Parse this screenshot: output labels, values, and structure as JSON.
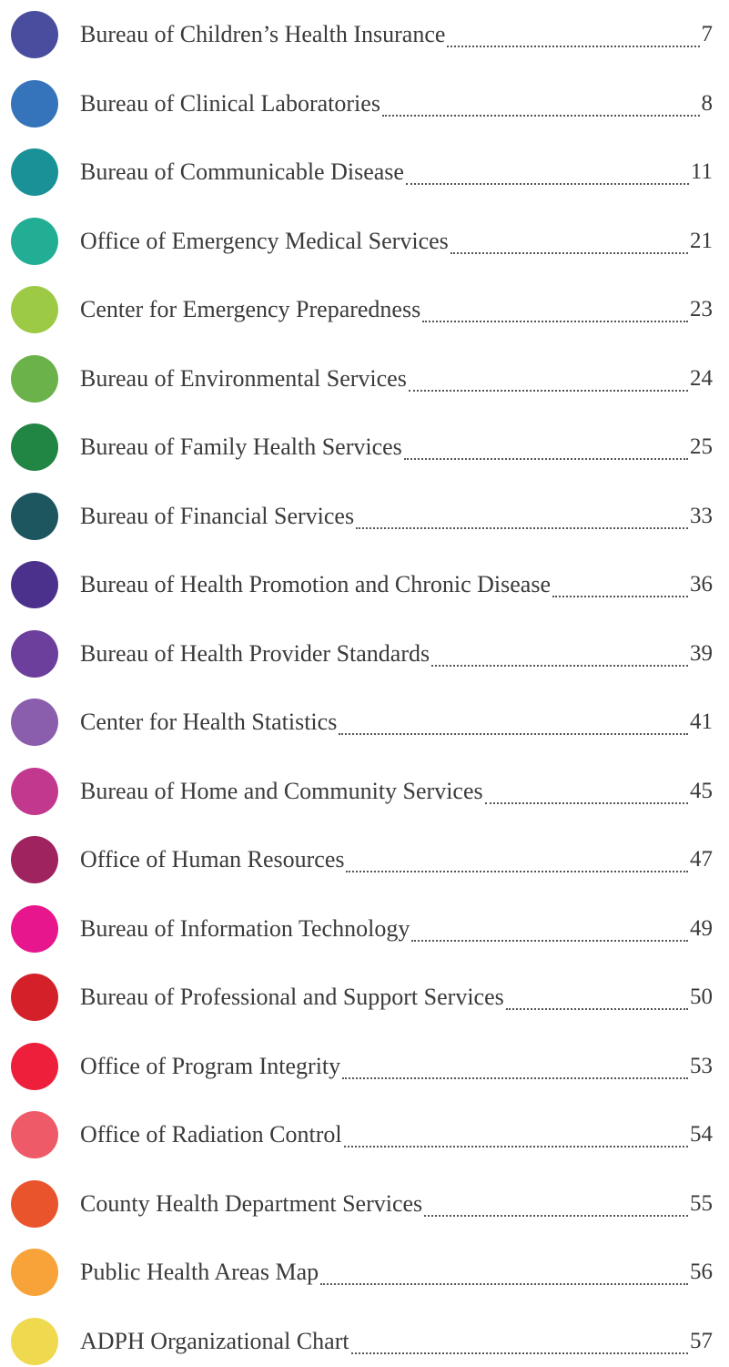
{
  "toc": {
    "entries": [
      {
        "title": "Bureau of Children’s Health Insurance",
        "page": 7,
        "color": "#4a4c9e"
      },
      {
        "title": "Bureau of Clinical Laboratories",
        "page": 8,
        "color": "#3574bb"
      },
      {
        "title": "Bureau of Communicable Disease",
        "page": 11,
        "color": "#1a9196"
      },
      {
        "title": "Office of Emergency Medical Services",
        "page": 21,
        "color": "#22ae94"
      },
      {
        "title": "Center for Emergency Preparedness",
        "page": 23,
        "color": "#9dca45"
      },
      {
        "title": "Bureau of Environmental Services",
        "page": 24,
        "color": "#6cb24a"
      },
      {
        "title": "Bureau of Family Health Services",
        "page": 25,
        "color": "#218544"
      },
      {
        "title": "Bureau of Financial Services",
        "page": 33,
        "color": "#1d565f"
      },
      {
        "title": "Bureau of Health Promotion and Chronic Disease",
        "page": 36,
        "color": "#4b318c"
      },
      {
        "title": "Bureau of Health Provider Standards",
        "page": 39,
        "color": "#6c3f9c"
      },
      {
        "title": "Center for Health Statistics",
        "page": 41,
        "color": "#8a5dad"
      },
      {
        "title": "Bureau of Home and Community Services",
        "page": 45,
        "color": "#c2388f"
      },
      {
        "title": "Office of Human Resources",
        "page": 47,
        "color": "#9e235f"
      },
      {
        "title": "Bureau of Information Technology",
        "page": 49,
        "color": "#e8168c"
      },
      {
        "title": "Bureau of Professional and Support Services",
        "page": 50,
        "color": "#d42129"
      },
      {
        "title": "Office of Program Integrity",
        "page": 53,
        "color": "#ed1f3a"
      },
      {
        "title": "Office of Radiation Control",
        "page": 54,
        "color": "#ee5a67"
      },
      {
        "title": "County Health Department Services",
        "page": 55,
        "color": "#e9542d"
      },
      {
        "title": "Public Health Areas Map",
        "page": 56,
        "color": "#f8a33a"
      },
      {
        "title": "ADPH Organizational Chart",
        "page": 57,
        "color": "#efd94e"
      }
    ]
  }
}
